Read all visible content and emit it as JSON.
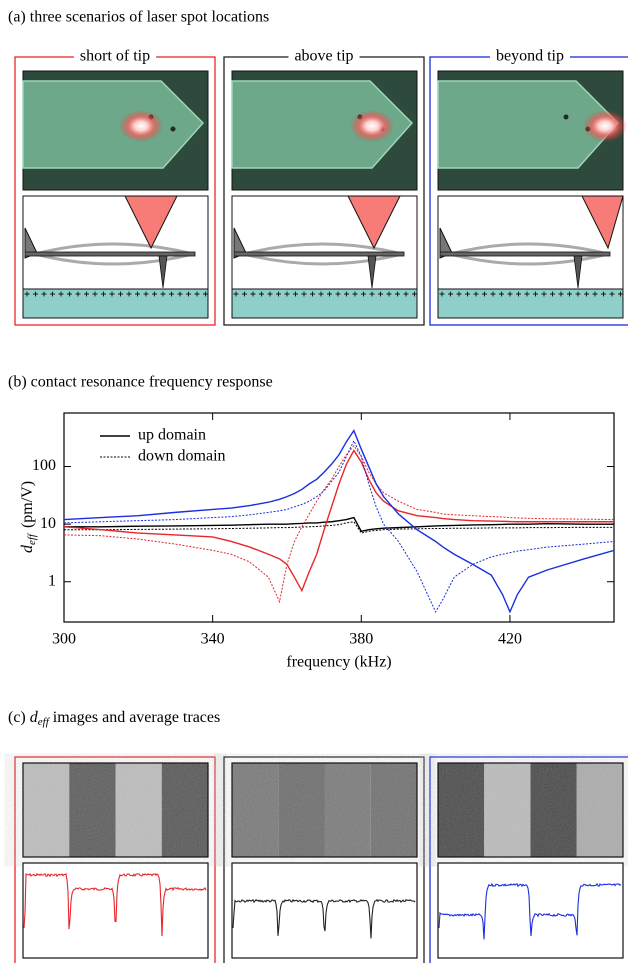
{
  "panel_a": {
    "title": "(a) three scenarios of laser spot locations",
    "scenarios": [
      {
        "label": "short of tip",
        "color": "#e8262a"
      },
      {
        "label": "above tip",
        "color": "#222222"
      },
      {
        "label": "beyond tip",
        "color": "#1a2ee0"
      }
    ]
  },
  "panel_b": {
    "title": "(b) contact resonance frequency response"
  },
  "chart_data": {
    "type": "line",
    "x": [
      300,
      310,
      320,
      330,
      340,
      345,
      350,
      355,
      358,
      360,
      362,
      364,
      366,
      368,
      370,
      372,
      374,
      376,
      378,
      380,
      382,
      384,
      386,
      390,
      395,
      400,
      402,
      405,
      410,
      415,
      418,
      420,
      422,
      425,
      430,
      440,
      448
    ],
    "xlim": [
      300,
      448
    ],
    "xticks": [
      300,
      340,
      380,
      420
    ],
    "ylim": [
      0.2,
      850
    ],
    "yticks": [
      1,
      10,
      100
    ],
    "log_y": true,
    "xlabel": "frequency (kHz)",
    "ylabel": {
      "symbol": "d",
      "subscript": "eff",
      "unit": "(pm/V)"
    },
    "legend_position": "upper left",
    "series": [
      {
        "name": "up domain",
        "color": "#000000",
        "dash": "solid",
        "values": [
          9,
          9,
          9.2,
          9.3,
          9.5,
          9.6,
          9.8,
          10,
          10,
          10,
          10.2,
          10.3,
          10.5,
          10.5,
          10.8,
          11,
          11.5,
          12,
          13,
          7.5,
          8,
          8.3,
          8.5,
          8.7,
          9,
          9.3,
          9.4,
          9.5,
          9.7,
          9.8,
          9.9,
          10,
          10,
          10,
          10.2,
          10,
          10
        ]
      },
      {
        "name": "down domain",
        "color": "#000000",
        "dash": "dotted",
        "values": [
          8,
          8,
          8.1,
          8.2,
          8.3,
          8.4,
          8.5,
          8.6,
          8.7,
          8.7,
          8.8,
          8.9,
          9,
          9.1,
          9.3,
          9.5,
          9.8,
          10.5,
          11,
          7,
          7.5,
          7.8,
          8,
          8.2,
          8.3,
          8.4,
          8.4,
          8.5,
          8.5,
          8.6,
          8.6,
          8.6,
          8.6,
          8.7,
          8.7,
          8.8,
          8.8
        ]
      },
      {
        "name": "up domain",
        "color": "#e8262a",
        "dash": "solid",
        "values": [
          9,
          8,
          7,
          6.5,
          6,
          5,
          4,
          3,
          2.5,
          2,
          1.2,
          0.7,
          1.5,
          3,
          8,
          20,
          50,
          110,
          190,
          120,
          60,
          35,
          25,
          17,
          14,
          13,
          12.5,
          12,
          11.5,
          11.3,
          11.2,
          11.1,
          11,
          11,
          11,
          11,
          11
        ]
      },
      {
        "name": "down domain",
        "color": "#e8262a",
        "dash": "dotted",
        "values": [
          6.5,
          6.3,
          5.5,
          4.5,
          3.5,
          3,
          2.2,
          1.2,
          0.45,
          2,
          5,
          9,
          15,
          25,
          40,
          60,
          100,
          160,
          230,
          150,
          80,
          50,
          35,
          25,
          18,
          16,
          15,
          14.5,
          14,
          13.5,
          13.3,
          13,
          12.8,
          12.6,
          12.4,
          12.2,
          12
        ]
      },
      {
        "name": "up domain",
        "color": "#1a2ee0",
        "dash": "solid",
        "values": [
          12,
          13,
          14,
          16,
          18,
          19,
          21,
          24,
          27,
          30,
          34,
          40,
          50,
          60,
          80,
          110,
          160,
          270,
          420,
          200,
          100,
          50,
          30,
          15,
          8,
          5,
          4,
          3,
          2,
          1.3,
          0.6,
          0.3,
          0.6,
          1.2,
          1.6,
          2.5,
          3.5
        ]
      },
      {
        "name": "down domain",
        "color": "#1a2ee0",
        "dash": "dotted",
        "values": [
          10.5,
          11,
          11.5,
          12,
          13,
          13.5,
          14.5,
          16,
          17,
          18,
          20,
          22,
          25,
          30,
          38,
          55,
          80,
          150,
          280,
          150,
          50,
          20,
          10,
          5,
          1.5,
          0.3,
          0.5,
          1.2,
          2,
          2.7,
          3,
          3.2,
          3.4,
          3.6,
          4,
          4.5,
          5
        ]
      }
    ]
  },
  "panel_c": {
    "prefix": "(c)",
    "symbol": "d",
    "subscript": "eff",
    "rest": "images and average traces"
  }
}
